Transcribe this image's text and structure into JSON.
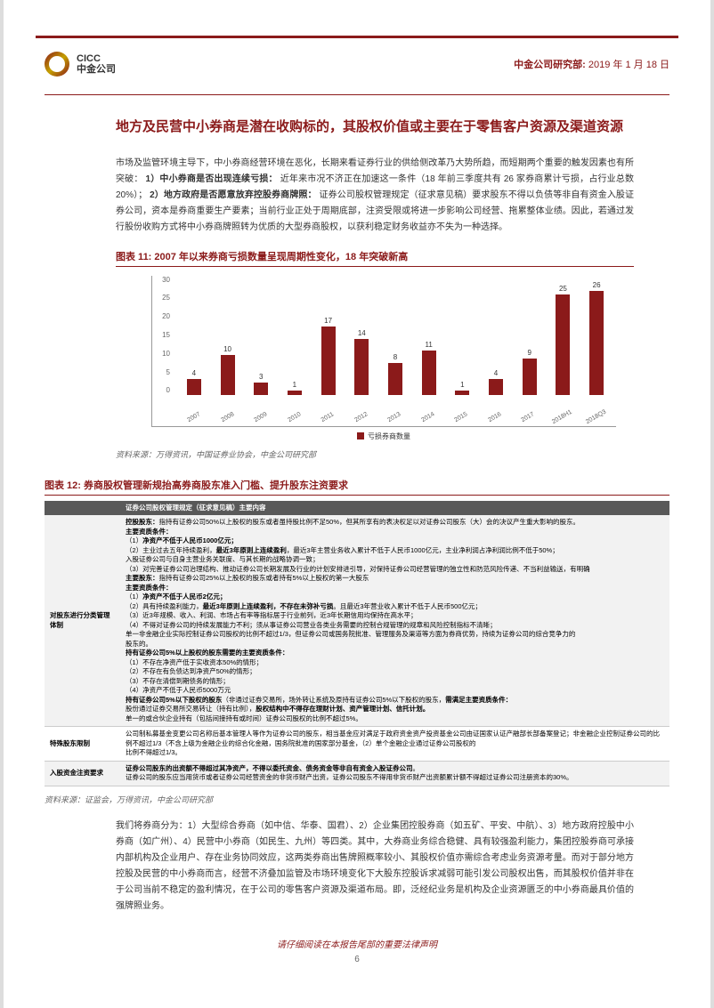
{
  "header": {
    "logo_en": "CICC",
    "logo_cn": "中金公司",
    "dept": "中金公司研究部:",
    "date": "2019 年 1 月 18 日"
  },
  "section_title": "地方及民营中小券商是潜在收购标的，其股权价值或主要在于零售客户资源及渠道资源",
  "para1": "市场及监管环境主导下，中小券商经营环境在恶化，长期来看证券行业的供给侧改革乃大势所趋，而短期两个重要的触发因素也有所突破：",
  "para1_b1": "1）中小券商是否出现连续亏损：",
  "para1_c1": "近年来市况不济正在加速这一条件（18 年前三季度共有 26 家券商累计亏损，占行业总数 20%）；",
  "para1_b2": "2）地方政府是否愿意放弃控股券商牌照：",
  "para1_c2": "证券公司股权管理规定（征求意见稿）要求股东不得以负债等非自有资金入股证券公司，资本是券商重要生产要素；当前行业正处于周期底部，注资受限或将进一步影响公司经营、拖累整体业绩。因此，若通过发行股份收购方式将中小券商牌照转为优质的大型券商股权，以获利稳定财务收益亦不失为一种选择。",
  "fig11_title": "图表 11: 2007 年以来券商亏损数量呈现周期性变化，18 年突破新高",
  "chart": {
    "ymax": 30,
    "ystep": 5,
    "categories": [
      "2007",
      "2008",
      "2009",
      "2010",
      "2011",
      "2012",
      "2013",
      "2014",
      "2015",
      "2016",
      "2017",
      "2018H1",
      "2018Q3"
    ],
    "values": [
      4,
      10,
      3,
      1,
      17,
      14,
      8,
      11,
      1,
      4,
      9,
      25,
      26
    ],
    "legend": "亏损券商数量",
    "bar_color": "#8b1a1a"
  },
  "source11": "资料来源：万得资讯，中国证券业协会，中金公司研究部",
  "fig12_title": "图表 12: 券商股权管理新规抬高券商股东准入门槛、提升股东注资要求",
  "table": {
    "hdr1": "证券公司股权管理规定（征求意见稿）主要内容",
    "rows": [
      {
        "c1": "对股东进行分类管理体制",
        "c2": "<span class='sub-title'>控股股东：</span>指持有证券公司50%以上股权的股东或者虽持股比例不足50%，但其所享有的表决权足以对证券公司股东（大）会的决议产生重大影响的股东。<br><span class='sub-title'>主要资质条件：</span><br>（1）<span class='sub-title'>净资产不低于人民币1000亿元；</span><br>（2）主业过去五年持续盈利，<span class='sub-title'>最近3年原则上连续盈利</span>，最近3年主营业务收入累计不低于人民币1000亿元，主业净利润占净利润比例不低于50%；<br>入股证券公司与自身主营业务关联度、与其长期的战略协调一致；<br>（3）对完善证券公司治理结构、推动证券公司长期发展及行业的计划安排进引导，对保持证券公司经营管理的独立性和防范风险传递、不当利益输送，有明确<br><span class='sub-title'>主要股东：</span>指持有证券公司25%以上股权的股东或者持有5%以上股权的第一大股东<br><span class='sub-title'>主要资质条件：</span><br>（1）<span class='sub-title'>净资产不低于人民币2亿元；</span><br>（2）具有持续盈利能力，<span class='sub-title'>最近3年原则上连续盈利，不存在未弥补亏损</span>。且最近3年营业收入累计不低于人民币500亿元；<br>（3）近3年规模、收入、利润、市场占有率等指标居于行业前列，近3年长期信用均保持在高水平；<br>（4）不得对证券公司的持续发展能力不利；须从事证券公司营业各类业务需要的控制合规管理的规章和风险控制指标不清晰；<br>单一非金融企业实际控制证券公司股权的比例不超过1/3，但证券公司或国务院批准、管理服务及渠道等方面为券商优势，持续为证券公司的综合竞争力的<br>股东的。<br><span class='sub-title'>持有证券公司5%以上股权的股东需要的主要资质条件：</span><br>（1）不存在净资产低于实收资本50%的情形；<br>（2）不存在有负债达到净资产50%的情形；<br>（3）不存在清偿到期债务的情形；<br>（4）净资产不低于人民币5000万元<br><span class='sub-title'>持有证券公司5%以下股权的股东</span>（非通过证券交易所，场外转让系统及原持有证券公司5%以下股权的股东，<span class='sub-title'>需满足主要资质条件：</span><br>股份通过证券交易所交易转让（持有比例），<span class='sub-title'>股权结构中不得存在理财计划、资产管理计划、信托计划。</span><br>单一的或合伙企业持有（包括间接持有或时间）证券公司股权的比例不超过5%。"
      },
      {
        "c1": "特殊股东限制",
        "c2": "公司制私募基金变更公司名称后基本管理人等作为证券公司的股东，相当基金应对满足于政府资金资产投资基金公司由证国家认证产融部长部备案登记；非金融企业控制证券公司的比例不超过1/3（不含上级为金融企业的综合化金融，国务院批准的国家部分基金，（2）单个金融企业通过证券公司股权的<br>比例不得超过1/3。"
      },
      {
        "c1": "入股资金注资要求",
        "c2": "<span class='sub-title'>证券公司股东的出资额不得超过其净资产，不得以委托资金、债务资金等非自有资金入股证券公司</span>。<br>证券公司的股东应当用货币或者证券公司经营资金的非货币财产出资，证券公司股东不得用非货币财产出资额累计额不得超过证券公司注册资本的30%。"
      }
    ]
  },
  "source12": "资料来源：证监会，万得资讯，中金公司研究部",
  "para2": "我们将券商分为：1）大型综合券商（如中信、华泰、国君）、2）企业集团控股券商（如五矿、平安、中航）、3）地方政府控股中小券商（如广州）、4）民营中小券商（如民生、九州）等四类。其中，大券商业务综合稳健、具有较强盈利能力，集团控股券商可承接内部机构及企业用户、存在业务协同效应，这两类券商出售牌照概率较小、其股权价值亦需综合考虑业务资源考量。而对于部分地方控股及民营的中小券商而言，经营不济叠加监管及市场环境变化下大股东控股诉求减弱可能引发公司股权出售，而其股权价值并非在于公司当前不稳定的盈利情况，在于公司的零售客户资源及渠道布局。即，泛经纪业务是机构及企业资源匮乏的中小券商最具价值的强牌照业务。",
  "disclaimer": "请仔细阅读在本报告尾部的重要法律声明",
  "page_num": "6"
}
